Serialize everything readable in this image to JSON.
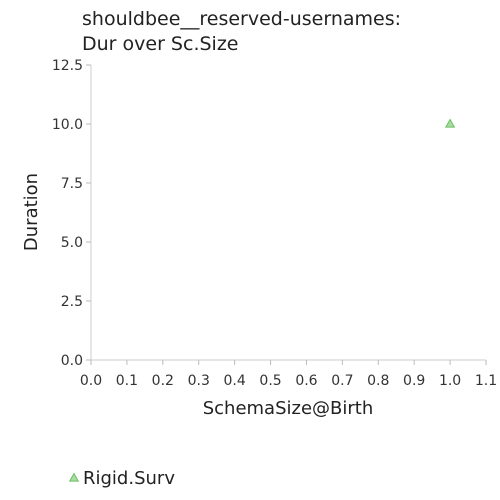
{
  "chart_data": {
    "type": "scatter",
    "title": [
      "shouldbee__reserved-usernames:",
      "Dur over Sc.Size"
    ],
    "xlabel": "SchemaSize@Birth",
    "ylabel": "Duration",
    "xlim": [
      0,
      1.1
    ],
    "ylim": [
      0,
      12.5
    ],
    "xticks": [
      "0.0",
      "0.1",
      "0.2",
      "0.3",
      "0.4",
      "0.5",
      "0.6",
      "0.7",
      "0.8",
      "0.9",
      "1.0",
      "1.1"
    ],
    "yticks": [
      "0.0",
      "2.5",
      "5.0",
      "7.5",
      "10.0",
      "12.5"
    ],
    "grid": false,
    "legend_position": "bottom-left",
    "series": [
      {
        "name": "Rigid.Surv",
        "marker": "triangle",
        "color": "#a8dca0",
        "edge_color": "#6cbf63",
        "points": [
          {
            "x": 1.0,
            "y": 10.0
          }
        ]
      }
    ]
  }
}
